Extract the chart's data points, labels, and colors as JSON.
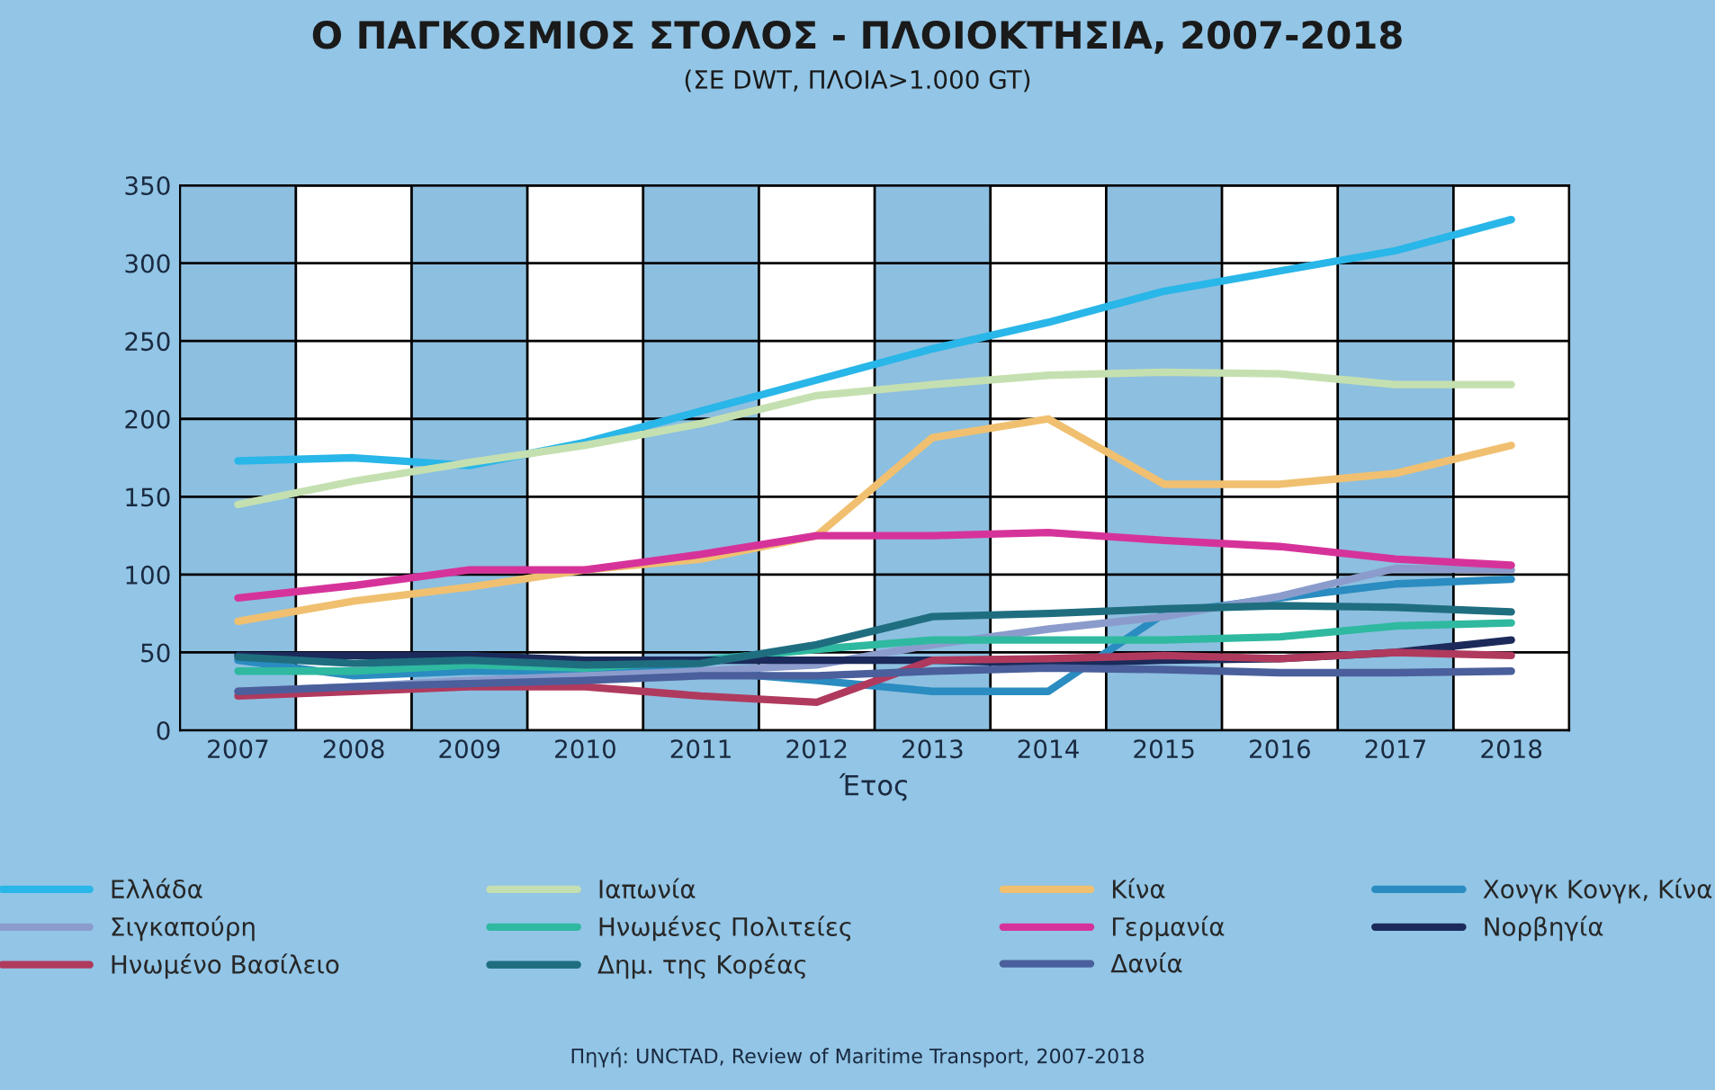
{
  "chart_data": {
    "type": "line",
    "title": "Ο ΠΑΓΚΟΣΜΙΟΣ ΣΤΟΛΟΣ - ΠΛΟΙΟΚΤΗΣΙΑ, 2007-2018",
    "subtitle": "(ΣΕ DWT, ΠΛΟΙΑ>1.000 GT)",
    "xlabel": "Έτος",
    "x": [
      2007,
      2008,
      2009,
      2010,
      2011,
      2012,
      2013,
      2014,
      2015,
      2016,
      2017,
      2018
    ],
    "xlim": [
      2006.5,
      2018.5
    ],
    "xticks": [
      2007,
      2008,
      2009,
      2010,
      2011,
      2012,
      2013,
      2014,
      2015,
      2016,
      2017,
      2018
    ],
    "ylim": [
      0,
      350
    ],
    "yticks": [
      0,
      50,
      100,
      150,
      200,
      250,
      300,
      350
    ],
    "grid": "y",
    "legend": "bottom",
    "marker": "none",
    "line_style": "solid",
    "bands": [
      {
        "axis": "x",
        "from": 2007.5,
        "to": 2008.5,
        "color": "#ffffff"
      },
      {
        "axis": "x",
        "from": 2009.5,
        "to": 2010.5,
        "color": "#ffffff"
      },
      {
        "axis": "x",
        "from": 2011.5,
        "to": 2012.5,
        "color": "#ffffff"
      },
      {
        "axis": "x",
        "from": 2013.5,
        "to": 2014.5,
        "color": "#ffffff"
      },
      {
        "axis": "x",
        "from": 2015.5,
        "to": 2016.5,
        "color": "#ffffff"
      },
      {
        "axis": "x",
        "from": 2017.5,
        "to": 2018.5,
        "color": "#ffffff"
      }
    ],
    "series": [
      {
        "name": "Ελλάδα",
        "color": "#29b6e8",
        "values": [
          173,
          175,
          170,
          185,
          205,
          225,
          245,
          262,
          282,
          295,
          308,
          328
        ]
      },
      {
        "name": "Ιαπωνία",
        "color": "#c5e0b0",
        "values": [
          145,
          160,
          172,
          183,
          197,
          215,
          222,
          228,
          230,
          229,
          222,
          222
        ]
      },
      {
        "name": "Κίνα",
        "color": "#f0c070",
        "values": [
          70,
          83,
          92,
          103,
          110,
          125,
          188,
          200,
          158,
          158,
          165,
          183
        ]
      },
      {
        "name": "Χονγκ Κονγκ, Κίνα",
        "color": "#2a8cc0",
        "values": [
          45,
          35,
          38,
          38,
          38,
          32,
          25,
          25,
          75,
          85,
          94,
          97
        ]
      },
      {
        "name": "Σιγκαπούρη",
        "color": "#8b9ccc",
        "values": [
          25,
          28,
          32,
          35,
          38,
          42,
          55,
          65,
          73,
          86,
          104,
          103
        ]
      },
      {
        "name": "Ηνωμένες Πολιτείες",
        "color": "#2fb9a0",
        "values": [
          38,
          38,
          42,
          40,
          45,
          52,
          58,
          58,
          58,
          60,
          67,
          69
        ]
      },
      {
        "name": "Γερμανία",
        "color": "#d6339a",
        "values": [
          85,
          93,
          103,
          103,
          113,
          125,
          125,
          127,
          122,
          118,
          110,
          106
        ]
      },
      {
        "name": "Νορβηγία",
        "color": "#1b2a5a",
        "values": [
          48,
          48,
          48,
          45,
          45,
          45,
          45,
          43,
          45,
          46,
          50,
          58
        ]
      },
      {
        "name": "Ηνωμένο Βασίλειο",
        "color": "#b03a5e",
        "values": [
          22,
          25,
          28,
          28,
          22,
          18,
          45,
          46,
          48,
          46,
          50,
          48
        ]
      },
      {
        "name": "Δημ. της Κορέας",
        "color": "#1f6e80",
        "values": [
          47,
          43,
          45,
          42,
          43,
          55,
          73,
          75,
          78,
          80,
          79,
          76
        ]
      },
      {
        "name": "Δανία",
        "color": "#4a5f9c",
        "values": [
          25,
          28,
          30,
          32,
          35,
          35,
          38,
          40,
          39,
          37,
          37,
          38
        ]
      }
    ],
    "annotations": [
      "Πηγή: UNCTAD, Review of Maritime Transport, 2007-2018"
    ]
  }
}
